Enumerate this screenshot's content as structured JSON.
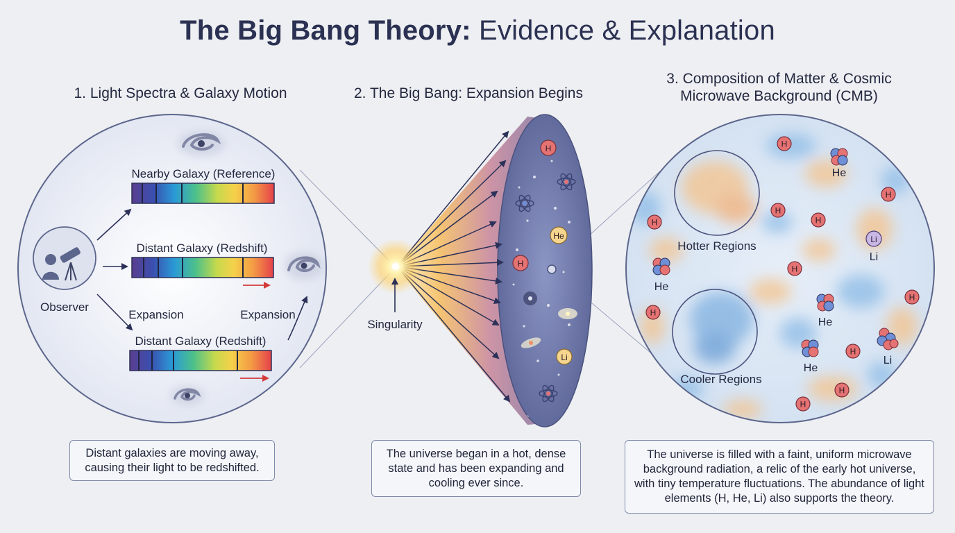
{
  "title": {
    "bold_part": "The Big Bang Theory:",
    "rest": " Evidence & Explanation"
  },
  "panel1": {
    "heading": "1. Light Spectra & Galaxy Motion",
    "observer_label": "Observer",
    "spectrum_nearby_label": "Nearby Galaxy (Reference)",
    "spectrum_distant1_label": "Distant Galaxy (Redshift)",
    "spectrum_distant2_label": "Distant Galaxy (Redshift)",
    "expansion_left": "Expansion",
    "expansion_right": "Expansion",
    "caption": "Distant galaxies are moving away, causing their light to be redshifted."
  },
  "panel2": {
    "heading": "2. The Big Bang: Expansion Begins",
    "singularity_label": "Singularity",
    "particles": [
      "H",
      "He",
      "H",
      "Li"
    ],
    "caption": "The universe began in a hot, dense state and has been expanding and cooling ever since."
  },
  "panel3": {
    "heading_line1": "3. Composition of Matter & Cosmic",
    "heading_line2": "Microwave Background (CMB)",
    "hotter_label": "Hotter Regions",
    "cooler_label": "Cooler Regions",
    "hydrogen_symbol": "H",
    "helium_symbol": "He",
    "lithium_symbol": "Li",
    "caption": "The universe is filled with a faint, uniform microwave background radiation, a relic of the early hot universe, with tiny temperature fluctuations. The abundance of light elements (H, He, Li) also supports the theory."
  },
  "colors": {
    "title": "#2b3152",
    "hydrogen": "#e57373",
    "helium": "#f6d58f",
    "lithium": "#c9b7e4",
    "proton_blue": "#6f8fd6",
    "panel_border": "#7e89a8"
  }
}
